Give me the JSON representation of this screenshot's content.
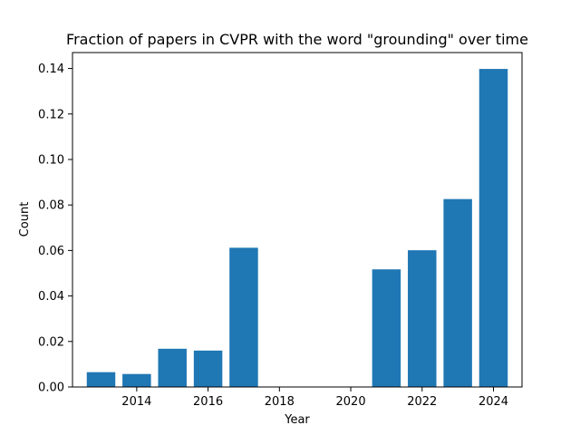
{
  "chart_data": {
    "type": "bar",
    "title": "Fraction of papers in CVPR with the word \"grounding\" over time",
    "xlabel": "Year",
    "ylabel": "Count",
    "x": [
      2013,
      2014,
      2015,
      2016,
      2017,
      2018,
      2019,
      2020,
      2021,
      2022,
      2023,
      2024
    ],
    "values": [
      0.0065,
      0.0057,
      0.0168,
      0.016,
      0.0612,
      0,
      0,
      0,
      0.0517,
      0.0601,
      0.0826,
      0.1398
    ],
    "color": "#1f77b4",
    "xlim": [
      2012.2,
      2024.8
    ],
    "ylim": [
      0,
      0.147
    ],
    "xticks": [
      2014,
      2016,
      2018,
      2020,
      2022,
      2024
    ],
    "xtick_labels": [
      "2014",
      "2016",
      "2018",
      "2020",
      "2022",
      "2024"
    ],
    "yticks": [
      0,
      0.02,
      0.04,
      0.06,
      0.08,
      0.1,
      0.12,
      0.14
    ],
    "ytick_labels": [
      "0.00",
      "0.02",
      "0.04",
      "0.06",
      "0.08",
      "0.10",
      "0.12",
      "0.14"
    ],
    "grid": false,
    "legend": "none"
  }
}
